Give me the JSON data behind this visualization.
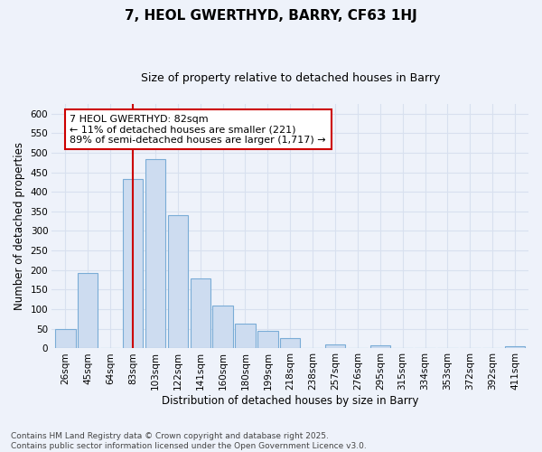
{
  "title": "7, HEOL GWERTHYD, BARRY, CF63 1HJ",
  "subtitle": "Size of property relative to detached houses in Barry",
  "xlabel": "Distribution of detached houses by size in Barry",
  "ylabel": "Number of detached properties",
  "bar_labels": [
    "26sqm",
    "45sqm",
    "64sqm",
    "83sqm",
    "103sqm",
    "122sqm",
    "141sqm",
    "160sqm",
    "180sqm",
    "199sqm",
    "218sqm",
    "238sqm",
    "257sqm",
    "276sqm",
    "295sqm",
    "315sqm",
    "334sqm",
    "353sqm",
    "372sqm",
    "392sqm",
    "411sqm"
  ],
  "bar_values": [
    50,
    192,
    0,
    432,
    484,
    340,
    178,
    110,
    62,
    44,
    25,
    0,
    10,
    0,
    8,
    0,
    0,
    0,
    0,
    0,
    5
  ],
  "bar_color": "#cddcf0",
  "bar_edge_color": "#7aacd6",
  "vline_x_index": 3,
  "vline_color": "#cc0000",
  "annotation_line1": "7 HEOL GWERTHYD: 82sqm",
  "annotation_line2": "← 11% of detached houses are smaller (221)",
  "annotation_line3": "89% of semi-detached houses are larger (1,717) →",
  "annotation_box_color": "#ffffff",
  "annotation_box_edge": "#cc0000",
  "ylim": [
    0,
    625
  ],
  "yticks": [
    0,
    50,
    100,
    150,
    200,
    250,
    300,
    350,
    400,
    450,
    500,
    550,
    600
  ],
  "footnote": "Contains HM Land Registry data © Crown copyright and database right 2025.\nContains public sector information licensed under the Open Government Licence v3.0.",
  "background_color": "#eef2fa",
  "grid_color": "#d8e0ef",
  "title_fontsize": 11,
  "subtitle_fontsize": 9,
  "axis_label_fontsize": 8.5,
  "tick_fontsize": 7.5,
  "annotation_fontsize": 8,
  "footnote_fontsize": 6.5
}
